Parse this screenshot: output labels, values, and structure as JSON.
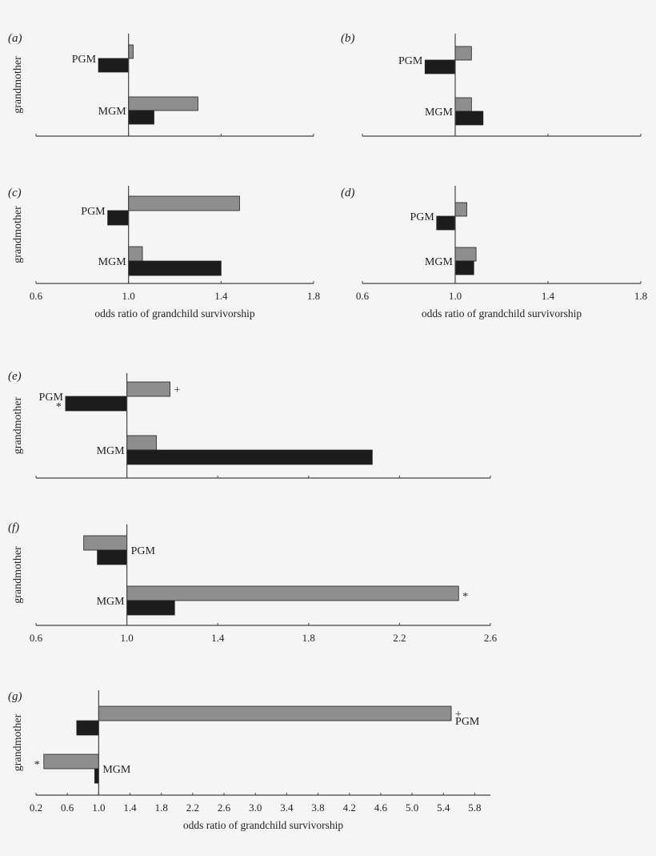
{
  "colors": {
    "maternal_bar": "#8e8e8e",
    "paternal_bar": "#1c1c1c",
    "background": "#f5f5f5",
    "axis": "#444444"
  },
  "chart_data": [
    {
      "panel": "a",
      "panel_label": "(a)",
      "type": "bar",
      "orientation": "horizontal",
      "ylabel": "grandmother",
      "xlabel": "",
      "xlim": [
        0.6,
        1.8
      ],
      "baseline": 1.0,
      "xticks": [
        0.6,
        1.0,
        1.4,
        1.8
      ],
      "show_tick_labels": false,
      "categories": [
        {
          "name": "PGM",
          "label_side": "left",
          "bars": [
            {
              "series": "grey",
              "value": 1.02,
              "mark": ""
            },
            {
              "series": "black",
              "value": 0.87,
              "mark": ""
            }
          ]
        },
        {
          "name": "MGM",
          "label_side": "left",
          "bars": [
            {
              "series": "grey",
              "value": 1.3,
              "mark": ""
            },
            {
              "series": "black",
              "value": 1.11,
              "mark": ""
            }
          ]
        }
      ]
    },
    {
      "panel": "b",
      "panel_label": "(b)",
      "type": "bar",
      "orientation": "horizontal",
      "ylabel": "",
      "xlabel": "",
      "xlim": [
        0.6,
        1.8
      ],
      "baseline": 1.0,
      "xticks": [
        0.6,
        1.0,
        1.4,
        1.8
      ],
      "show_tick_labels": false,
      "categories": [
        {
          "name": "PGM",
          "label_side": "left",
          "bars": [
            {
              "series": "grey",
              "value": 1.07,
              "mark": ""
            },
            {
              "series": "black",
              "value": 0.87,
              "mark": ""
            }
          ]
        },
        {
          "name": "MGM",
          "label_side": "left",
          "bars": [
            {
              "series": "grey",
              "value": 1.07,
              "mark": ""
            },
            {
              "series": "black",
              "value": 1.12,
              "mark": ""
            }
          ]
        }
      ]
    },
    {
      "panel": "c",
      "panel_label": "(c)",
      "type": "bar",
      "orientation": "horizontal",
      "ylabel": "grandmother",
      "xlabel": "odds ratio of grandchild survivorship",
      "xlim": [
        0.6,
        1.8
      ],
      "baseline": 1.0,
      "xticks": [
        0.6,
        1.0,
        1.4,
        1.8
      ],
      "xtick_labels": [
        "0.6",
        "1.0",
        "1.4",
        "1.8"
      ],
      "show_tick_labels": true,
      "categories": [
        {
          "name": "PGM",
          "label_side": "left",
          "bars": [
            {
              "series": "grey",
              "value": 1.48,
              "mark": ""
            },
            {
              "series": "black",
              "value": 0.91,
              "mark": ""
            }
          ]
        },
        {
          "name": "MGM",
          "label_side": "left",
          "bars": [
            {
              "series": "grey",
              "value": 1.06,
              "mark": ""
            },
            {
              "series": "black",
              "value": 1.4,
              "mark": ""
            }
          ]
        }
      ]
    },
    {
      "panel": "d",
      "panel_label": "(d)",
      "type": "bar",
      "orientation": "horizontal",
      "ylabel": "",
      "xlabel": "odds ratio of grandchild survivorship",
      "xlim": [
        0.6,
        1.8
      ],
      "baseline": 1.0,
      "xticks": [
        0.6,
        1.0,
        1.4,
        1.8
      ],
      "xtick_labels": [
        "0.6",
        "1.0",
        "1.4",
        "1.8"
      ],
      "show_tick_labels": true,
      "categories": [
        {
          "name": "PGM",
          "label_side": "left",
          "bars": [
            {
              "series": "grey",
              "value": 1.05,
              "mark": ""
            },
            {
              "series": "black",
              "value": 0.92,
              "mark": ""
            }
          ]
        },
        {
          "name": "MGM",
          "label_side": "left",
          "bars": [
            {
              "series": "grey",
              "value": 1.09,
              "mark": ""
            },
            {
              "series": "black",
              "value": 1.08,
              "mark": ""
            }
          ]
        }
      ]
    },
    {
      "panel": "e",
      "panel_label": "(e)",
      "type": "bar",
      "orientation": "horizontal",
      "ylabel": "grandmother",
      "xlabel": "",
      "xlim": [
        0.6,
        2.6
      ],
      "baseline": 1.0,
      "xticks": [
        0.6,
        1.0,
        1.4,
        1.8,
        2.2,
        2.6
      ],
      "show_tick_labels": false,
      "categories": [
        {
          "name": "PGM",
          "label_side": "left",
          "bars": [
            {
              "series": "grey",
              "value": 1.19,
              "mark": "+"
            },
            {
              "series": "black",
              "value": 0.73,
              "mark": "*"
            }
          ]
        },
        {
          "name": "MGM",
          "label_side": "left",
          "bars": [
            {
              "series": "grey",
              "value": 1.13,
              "mark": ""
            },
            {
              "series": "black",
              "value": 2.08,
              "mark": ""
            }
          ]
        }
      ]
    },
    {
      "panel": "f",
      "panel_label": "(f)",
      "type": "bar",
      "orientation": "horizontal",
      "ylabel": "grandmother",
      "xlabel": "",
      "xlim": [
        0.6,
        2.6
      ],
      "baseline": 1.0,
      "xticks": [
        0.6,
        1.0,
        1.4,
        1.8,
        2.2,
        2.6
      ],
      "xtick_labels": [
        "0.6",
        "1.0",
        "1.4",
        "1.8",
        "2.2",
        "2.6"
      ],
      "show_tick_labels": true,
      "categories": [
        {
          "name": "PGM",
          "label_side": "right",
          "bars": [
            {
              "series": "grey",
              "value": 0.81,
              "mark": ""
            },
            {
              "series": "black",
              "value": 0.87,
              "mark": ""
            }
          ]
        },
        {
          "name": "MGM",
          "label_side": "left",
          "bars": [
            {
              "series": "grey",
              "value": 2.46,
              "mark": "*"
            },
            {
              "series": "black",
              "value": 1.21,
              "mark": ""
            }
          ]
        }
      ]
    },
    {
      "panel": "g",
      "panel_label": "(g)",
      "type": "bar",
      "orientation": "horizontal",
      "ylabel": "grandmother",
      "xlabel": "odds ratio of grandchild survivorship",
      "xlim": [
        0.2,
        6.0
      ],
      "baseline": 1.0,
      "xticks": [
        0.2,
        0.6,
        1.0,
        1.4,
        1.8,
        2.2,
        2.6,
        3.0,
        3.4,
        3.8,
        4.2,
        4.6,
        5.0,
        5.4,
        5.8
      ],
      "xtick_labels": [
        "0.2",
        "0.6",
        "1.0",
        "1.4",
        "1.8",
        "2.2",
        "2.6",
        "3.0",
        "3.4",
        "3.8",
        "4.2",
        "4.6",
        "5.0",
        "5.4",
        "5.8"
      ],
      "show_tick_labels": true,
      "categories": [
        {
          "name": "PGM",
          "label_side": "right",
          "bars": [
            {
              "series": "grey",
              "value": 5.5,
              "mark": "+"
            },
            {
              "series": "black",
              "value": 0.72,
              "mark": ""
            }
          ]
        },
        {
          "name": "MGM",
          "label_side": "right",
          "bars": [
            {
              "series": "grey",
              "value": 0.3,
              "mark": "*"
            },
            {
              "series": "black",
              "value": 0.95,
              "mark": ""
            }
          ]
        }
      ]
    }
  ]
}
